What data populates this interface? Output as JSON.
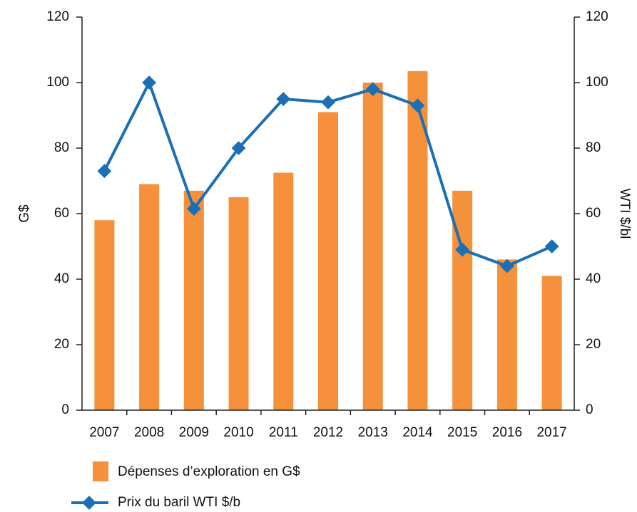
{
  "chart_data": {
    "type": "bar_line",
    "categories": [
      "2007",
      "2008",
      "2009",
      "2010",
      "2011",
      "2012",
      "2013",
      "2014",
      "2015",
      "2016",
      "2017"
    ],
    "ylabel": "G$",
    "y2label": "WTI $/bl",
    "ylim": [
      0,
      120
    ],
    "yticks": [
      0,
      20,
      40,
      60,
      80,
      100,
      120
    ],
    "y2lim": [
      0,
      120
    ],
    "y2ticks": [
      0,
      20,
      40,
      60,
      80,
      100,
      120
    ],
    "series": [
      {
        "name": "Dépenses d’exploration en G$",
        "type": "bar",
        "color": "#f5913a",
        "values": [
          58,
          69,
          67,
          65,
          72.5,
          91,
          100,
          103.5,
          67,
          46,
          41
        ]
      },
      {
        "name": "Prix du baril WTI $/b",
        "type": "line",
        "axis": "y2",
        "color": "#1a6fb5",
        "values": [
          73,
          100,
          61.5,
          80,
          95,
          94,
          98,
          93,
          49,
          44,
          50
        ]
      }
    ]
  }
}
